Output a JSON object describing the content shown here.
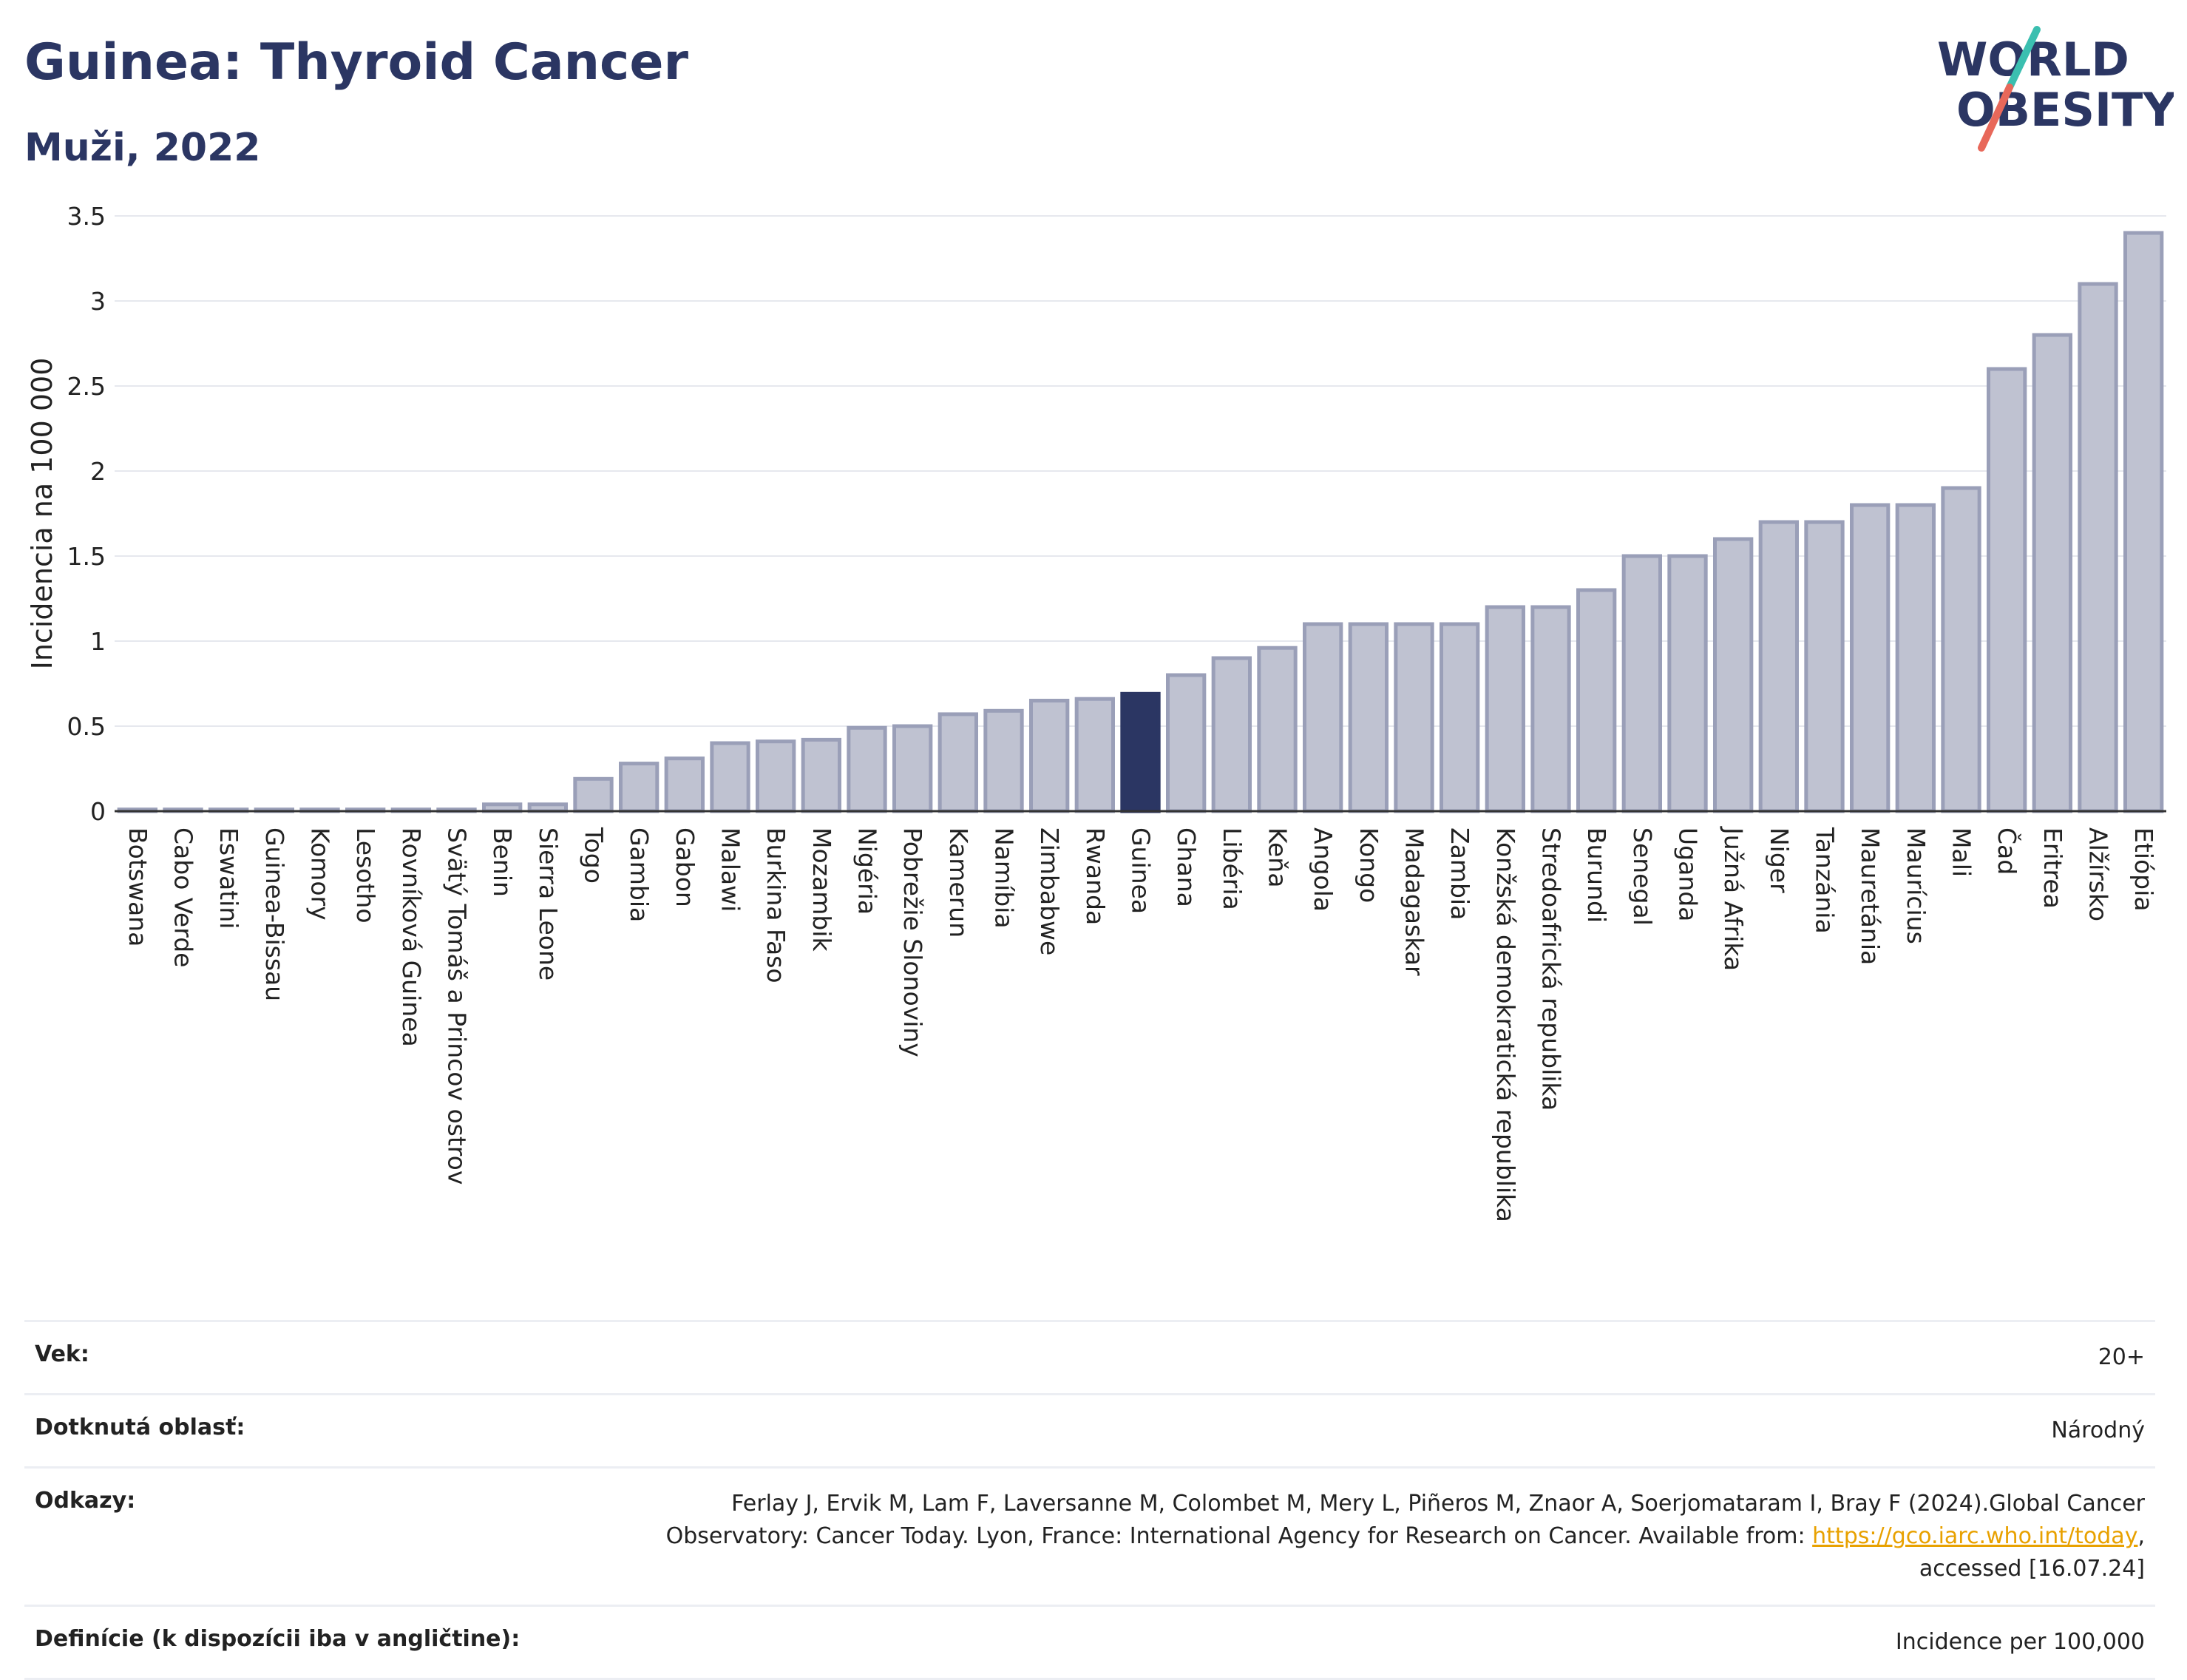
{
  "header": {
    "title": "Guinea: Thyroid Cancer",
    "subtitle": "Muži, 2022",
    "logo_line1": "WORLD",
    "logo_line2": "OBESITY"
  },
  "colors": {
    "bar": "#bfc2d1",
    "bar_stroke": "#9a9fb8",
    "highlight": "#2b3663",
    "title": "#2b3663",
    "logo_teal": "#3bbfb0",
    "logo_red": "#e8685a"
  },
  "chart_data": {
    "type": "bar",
    "ylabel": "Incidencia na 100 000",
    "ylim": [
      0,
      3.5
    ],
    "yticks": [
      0,
      0.5,
      1,
      1.5,
      2,
      2.5,
      3,
      3.5
    ],
    "ytick_labels": [
      "0",
      "0.5",
      "1",
      "1.5",
      "2",
      "2.5",
      "3",
      "3.5"
    ],
    "grid": true,
    "highlight": "Guinea",
    "categories": [
      "Botswana",
      "Cabo Verde",
      "Eswatini",
      "Guinea-Bissau",
      "Komory",
      "Lesotho",
      "Rovníková Guinea",
      "Svätý Tomáš a Princov ostrov",
      "Benin",
      "Sierra Leone",
      "Togo",
      "Gambia",
      "Gabon",
      "Malawi",
      "Burkina Faso",
      "Mozambik",
      "Nigéria",
      "Pobrežie Slonoviny",
      "Kamerun",
      "Namíbia",
      "Zimbabwe",
      "Rwanda",
      "Guinea",
      "Ghana",
      "Libéria",
      "Keňa",
      "Angola",
      "Kongo",
      "Madagaskar",
      "Zambia",
      "Konžská demokratická republika",
      "Stredoafrická republika",
      "Burundi",
      "Senegal",
      "Uganda",
      "Južná Afrika",
      "Niger",
      "Tanzánia",
      "Mauretánia",
      "Maurícius",
      "Mali",
      "Čad",
      "Eritrea",
      "Alžírsko",
      "Etiópia"
    ],
    "values": [
      0.01,
      0.01,
      0.01,
      0.01,
      0.01,
      0.01,
      0.01,
      0.01,
      0.04,
      0.04,
      0.19,
      0.28,
      0.31,
      0.4,
      0.41,
      0.42,
      0.49,
      0.5,
      0.57,
      0.59,
      0.65,
      0.66,
      0.69,
      0.8,
      0.9,
      0.96,
      1.1,
      1.1,
      1.1,
      1.1,
      1.2,
      1.2,
      1.3,
      1.5,
      1.5,
      1.6,
      1.7,
      1.7,
      1.8,
      1.8,
      1.9,
      2.6,
      2.8,
      3.1,
      3.4
    ]
  },
  "info": {
    "age_label": "Vek:",
    "age_value": "20+",
    "area_label": "Dotknutá oblasť:",
    "area_value": "Národný",
    "refs_label": "Odkazy:",
    "refs_text": "Ferlay J, Ervik M, Lam F, Laversanne M, Colombet M, Mery L, Piñeros M, Znaor A, Soerjomataram I, Bray F (2024).Global Cancer Observatory: Cancer Today. Lyon, France: International Agency for Research on Cancer. Available from: ",
    "refs_link": "https://gco.iarc.who.int/today",
    "refs_suffix": ", accessed [16.07.24]",
    "def_label": "Definície (k dispozícii iba v angličtine):",
    "def_value": "Incidence per 100,000"
  }
}
